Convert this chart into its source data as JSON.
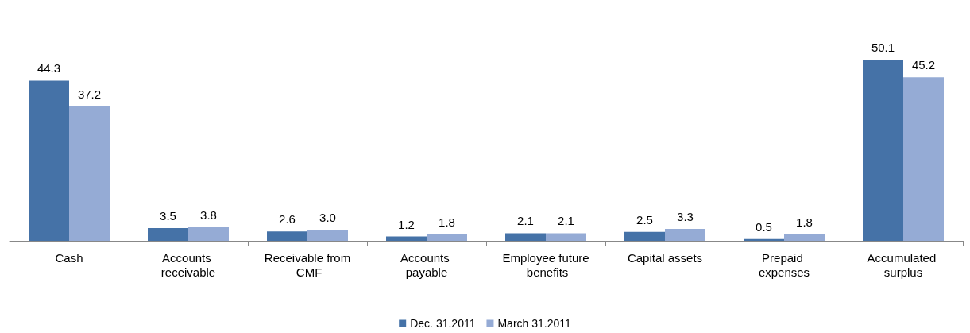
{
  "chart_data": {
    "type": "bar",
    "categories": [
      "Cash",
      "Accounts receivable",
      "Receivable from CMF",
      "Accounts payable",
      "Employee future benefits",
      "Capital assets",
      "Prepaid expenses",
      "Accumulated surplus"
    ],
    "series": [
      {
        "name": "Dec. 31.2011",
        "color": "#4572a7",
        "values": [
          44.3,
          3.5,
          2.6,
          1.2,
          2.1,
          2.5,
          0.5,
          50.1
        ],
        "value_labels": [
          "44.3",
          "3.5",
          "2.6",
          "1.2",
          "2.1",
          "2.5",
          "0.5",
          "50.1"
        ]
      },
      {
        "name": "March 31.2011",
        "color": "#95abd5",
        "values": [
          37.2,
          3.8,
          3.0,
          1.8,
          2.1,
          3.3,
          1.8,
          45.2
        ],
        "value_labels": [
          "37.2",
          "3.8",
          "3.0",
          "1.8",
          "2.1",
          "3.3",
          "1.8",
          "45.2"
        ]
      }
    ],
    "legend": "bottom",
    "grid": false
  }
}
